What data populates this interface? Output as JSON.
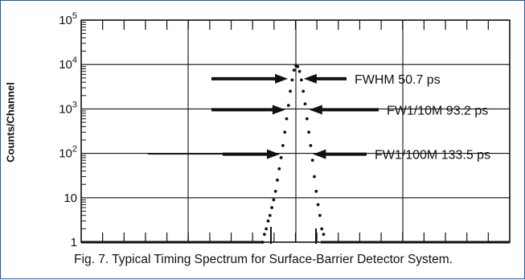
{
  "chart_data": {
    "type": "scatter",
    "title": "",
    "xlabel": "",
    "ylabel": "Counts/Channel",
    "yscale": "log",
    "ylim": [
      1,
      100000
    ],
    "y_tick_labels": [
      {
        "base": "10",
        "exp": "5"
      },
      {
        "base": "10",
        "exp": "4"
      },
      {
        "base": "10",
        "exp": "3"
      },
      {
        "base": "10",
        "exp": "2"
      },
      {
        "base": "10",
        "exp": ""
      },
      {
        "base": "1",
        "exp": ""
      }
    ],
    "x_tick_labels_shown": false,
    "grid": true,
    "peak_channel_index": 47,
    "points": [
      {
        "x": 0,
        "y": 1
      },
      {
        "x": 1,
        "y": 1
      },
      {
        "x": 2,
        "y": 1
      },
      {
        "x": 3,
        "y": 1
      },
      {
        "x": 4,
        "y": 1
      },
      {
        "x": 5,
        "y": 1
      },
      {
        "x": 6,
        "y": 1
      },
      {
        "x": 7,
        "y": 1
      },
      {
        "x": 8,
        "y": 1
      },
      {
        "x": 9,
        "y": 1
      },
      {
        "x": 10,
        "y": 1
      },
      {
        "x": 11,
        "y": 1
      },
      {
        "x": 12,
        "y": 1
      },
      {
        "x": 13,
        "y": 1
      },
      {
        "x": 14,
        "y": 1
      },
      {
        "x": 15,
        "y": 1
      },
      {
        "x": 16,
        "y": 1
      },
      {
        "x": 17,
        "y": 1
      },
      {
        "x": 18,
        "y": 1
      },
      {
        "x": 19,
        "y": 1
      },
      {
        "x": 20,
        "y": 1
      },
      {
        "x": 21,
        "y": 1
      },
      {
        "x": 22,
        "y": 1
      },
      {
        "x": 23,
        "y": 1
      },
      {
        "x": 24,
        "y": 1
      },
      {
        "x": 25,
        "y": 1
      },
      {
        "x": 26,
        "y": 1
      },
      {
        "x": 27,
        "y": 1
      },
      {
        "x": 28,
        "y": 1
      },
      {
        "x": 29,
        "y": 1
      },
      {
        "x": 30,
        "y": 1
      },
      {
        "x": 31,
        "y": 1
      },
      {
        "x": 32,
        "y": 1
      },
      {
        "x": 33,
        "y": 1
      },
      {
        "x": 34,
        "y": 1
      },
      {
        "x": 35,
        "y": 1
      },
      {
        "x": 36,
        "y": 1
      },
      {
        "x": 37,
        "y": 1
      },
      {
        "x": 38,
        "y": 1
      },
      {
        "x": 38.5,
        "y": 1.5
      },
      {
        "x": 39,
        "y": 2
      },
      {
        "x": 39.5,
        "y": 3
      },
      {
        "x": 40,
        "y": 4
      },
      {
        "x": 40.5,
        "y": 6
      },
      {
        "x": 41,
        "y": 9
      },
      {
        "x": 41.5,
        "y": 14
      },
      {
        "x": 42,
        "y": 25
      },
      {
        "x": 42.5,
        "y": 45
      },
      {
        "x": 43,
        "y": 80
      },
      {
        "x": 43.5,
        "y": 150
      },
      {
        "x": 44,
        "y": 300
      },
      {
        "x": 44.5,
        "y": 600
      },
      {
        "x": 45,
        "y": 1200
      },
      {
        "x": 45.5,
        "y": 2500
      },
      {
        "x": 46,
        "y": 4500
      },
      {
        "x": 46.5,
        "y": 7500
      },
      {
        "x": 47,
        "y": 9500
      },
      {
        "x": 47.5,
        "y": 9000
      },
      {
        "x": 48,
        "y": 7000
      },
      {
        "x": 48.5,
        "y": 4500
      },
      {
        "x": 49,
        "y": 2500
      },
      {
        "x": 49.5,
        "y": 1300
      },
      {
        "x": 50,
        "y": 600
      },
      {
        "x": 50.5,
        "y": 300
      },
      {
        "x": 51,
        "y": 150
      },
      {
        "x": 51.5,
        "y": 70
      },
      {
        "x": 52,
        "y": 30
      },
      {
        "x": 52.5,
        "y": 14
      },
      {
        "x": 53,
        "y": 7
      },
      {
        "x": 53.5,
        "y": 4
      },
      {
        "x": 54,
        "y": 2
      },
      {
        "x": 54.5,
        "y": 1.5
      },
      {
        "x": 55,
        "y": 1
      },
      {
        "x": 56,
        "y": 1
      },
      {
        "x": 57,
        "y": 1
      },
      {
        "x": 58,
        "y": 1
      },
      {
        "x": 59,
        "y": 1
      },
      {
        "x": 60,
        "y": 1
      },
      {
        "x": 61,
        "y": 1
      },
      {
        "x": 62,
        "y": 1
      },
      {
        "x": 63,
        "y": 1
      },
      {
        "x": 64,
        "y": 1
      },
      {
        "x": 65,
        "y": 1
      },
      {
        "x": 66,
        "y": 1
      },
      {
        "x": 67,
        "y": 1
      },
      {
        "x": 68,
        "y": 1
      },
      {
        "x": 69,
        "y": 1
      },
      {
        "x": 70,
        "y": 1
      },
      {
        "x": 71,
        "y": 1
      },
      {
        "x": 72,
        "y": 1
      },
      {
        "x": 73,
        "y": 1
      },
      {
        "x": 74,
        "y": 1
      },
      {
        "x": 75,
        "y": 1
      },
      {
        "x": 76,
        "y": 1
      },
      {
        "x": 77,
        "y": 1
      },
      {
        "x": 78,
        "y": 1
      },
      {
        "x": 79,
        "y": 1
      },
      {
        "x": 80,
        "y": 1
      },
      {
        "x": 81,
        "y": 1
      },
      {
        "x": 82,
        "y": 1
      },
      {
        "x": 83,
        "y": 1
      },
      {
        "x": 84,
        "y": 1
      },
      {
        "x": 85,
        "y": 1
      },
      {
        "x": 86,
        "y": 1
      },
      {
        "x": 87,
        "y": 1
      },
      {
        "x": 88,
        "y": 1
      },
      {
        "x": 89,
        "y": 1
      },
      {
        "x": 90,
        "y": 1
      },
      {
        "x": 91,
        "y": 1
      },
      {
        "x": 92,
        "y": 1
      },
      {
        "x": 93,
        "y": 1
      },
      {
        "x": 94,
        "y": 1
      },
      {
        "x": 95,
        "y": 1
      },
      {
        "x": 96,
        "y": 1
      },
      {
        "x": 97,
        "y": 1
      },
      {
        "x": 98,
        "y": 1
      },
      {
        "x": 99,
        "y": 1
      },
      {
        "x": 100,
        "y": 1
      },
      {
        "x": 101,
        "y": 1
      },
      {
        "x": 102,
        "y": 1
      },
      {
        "x": 103,
        "y": 1
      },
      {
        "x": 104,
        "y": 1
      },
      {
        "x": 105,
        "y": 1
      },
      {
        "x": 106,
        "y": 1
      },
      {
        "x": 107,
        "y": 1
      },
      {
        "x": 108,
        "y": 1
      },
      {
        "x": 109,
        "y": 1
      },
      {
        "x": 110,
        "y": 1
      }
    ],
    "annotations": [
      {
        "text": "FWHM 50.7 ps",
        "level": 5000,
        "left_x": 45.5,
        "right_x": 48.5
      },
      {
        "text": "FW1/10M 93.2 ps",
        "level": 1000,
        "left_x": 44.8,
        "right_x": 50.0
      },
      {
        "text": "FW1/100M 133.5 ps",
        "level": 100,
        "left_x": 43.3,
        "right_x": 51.0
      }
    ]
  },
  "caption": "Fig. 7.  Typical Timing Spectrum for Surface-Barrier Detector System."
}
